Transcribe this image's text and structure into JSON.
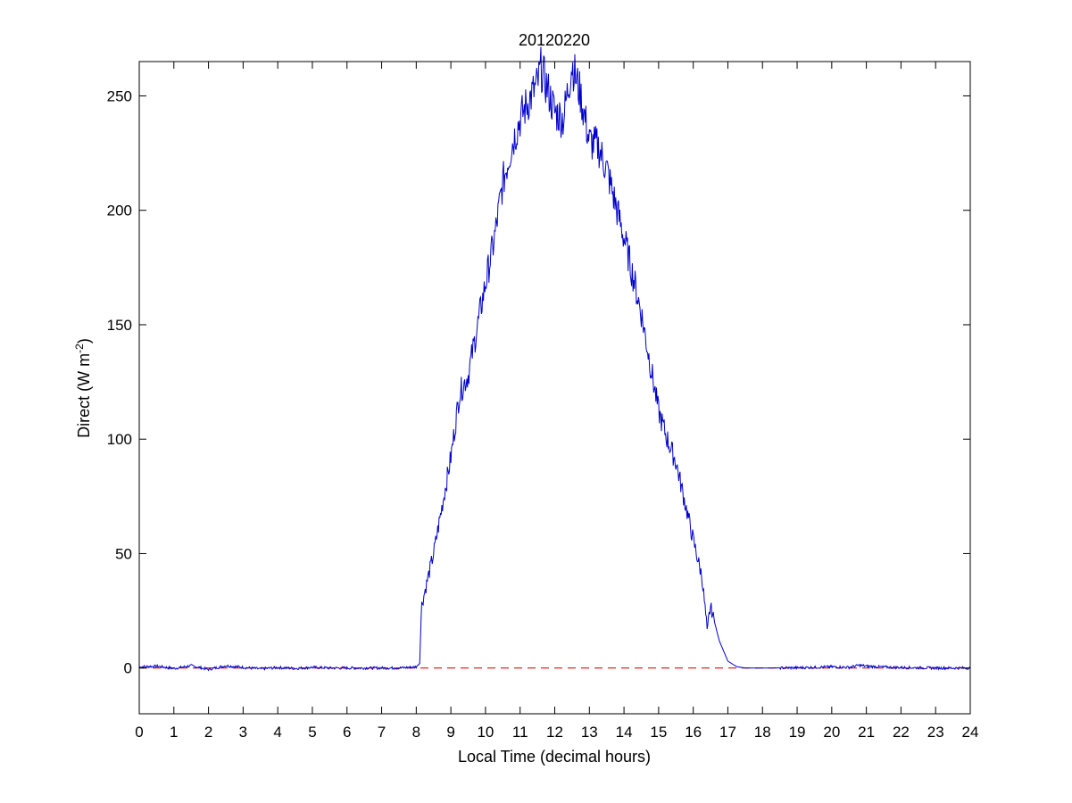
{
  "chart_data": {
    "type": "line",
    "title": "20120220",
    "xlabel": "Local Time (decimal hours)",
    "ylabel_main": "Direct (W m",
    "ylabel_sup": "-2",
    "ylabel_end": ")",
    "xlim": [
      0,
      24
    ],
    "ylim": [
      -20,
      265
    ],
    "xticks": [
      0,
      1,
      2,
      3,
      4,
      5,
      6,
      7,
      8,
      9,
      10,
      11,
      12,
      13,
      14,
      15,
      16,
      17,
      18,
      19,
      20,
      21,
      22,
      23,
      24
    ],
    "yticks": [
      0,
      50,
      100,
      150,
      200,
      250
    ],
    "grid": false,
    "colors": {
      "series": "#0000cc",
      "baseline": "#e01010"
    },
    "series": [
      {
        "style": "solid",
        "x": [
          0,
          0.5,
          1,
          1.5,
          2,
          2.5,
          3,
          3.5,
          4,
          4.5,
          5,
          5.5,
          6,
          6.5,
          7,
          7.5,
          8,
          8.1,
          8.15,
          8.5,
          9,
          9.25,
          9.5,
          10,
          10.25,
          10.5,
          10.75,
          11,
          11.25,
          11.5,
          11.6,
          11.75,
          12,
          12.25,
          12.5,
          12.75,
          13,
          13.25,
          13.5,
          14,
          14.25,
          14.5,
          15,
          15.25,
          15.5,
          15.75,
          16,
          16.25,
          16.4,
          16.5,
          16.75,
          17,
          17.25,
          17.5,
          18,
          19,
          20,
          20.5,
          20.8,
          21,
          21.5,
          22,
          23,
          24
        ],
        "y": [
          0.5,
          0.8,
          -0.2,
          1,
          -0.6,
          1,
          0.3,
          -0.4,
          0.2,
          -0.2,
          0.3,
          0,
          0,
          0,
          0,
          0,
          0.5,
          2,
          27,
          50,
          92,
          120,
          128,
          168,
          187,
          212,
          228,
          240,
          248,
          255,
          262,
          255,
          243,
          240,
          264,
          250,
          230,
          228,
          218,
          188,
          172,
          155,
          112,
          100,
          90,
          73,
          56,
          40,
          17,
          27,
          12,
          3,
          0.6,
          0,
          0,
          0.1,
          0.5,
          0.3,
          1.2,
          0.8,
          0.4,
          0.2,
          0,
          0
        ]
      },
      {
        "style": "dashed",
        "x": [
          0,
          24
        ],
        "y": [
          0,
          0
        ]
      }
    ]
  }
}
